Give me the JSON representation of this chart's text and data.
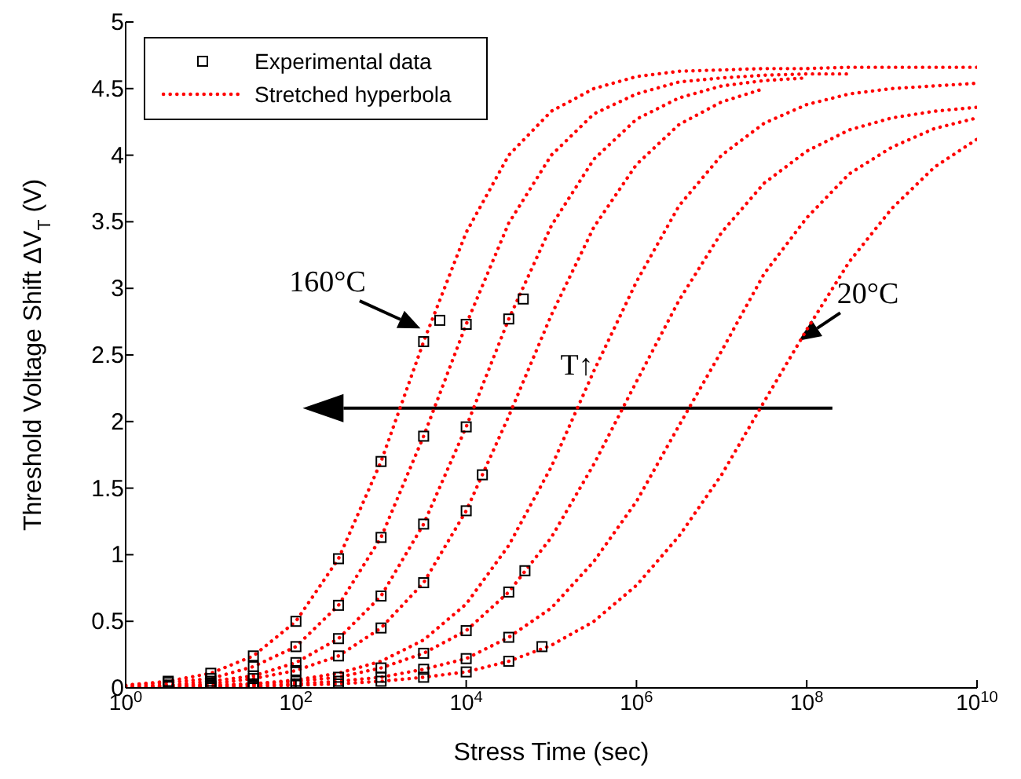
{
  "chart_data": {
    "type": "line",
    "xlabel": "Stress Time (sec)",
    "ylabel": "Threshold Voltage Shift ΔV$_{T}$ (V)",
    "log": "x",
    "xlim": [
      1,
      10000000000
    ],
    "xticks": [
      {
        "value": 1,
        "label": "10$^{0}$"
      },
      {
        "value": 100,
        "label": "10$^{2}$"
      },
      {
        "value": 10000,
        "label": "10$^{4}$"
      },
      {
        "value": 1000000,
        "label": "10$^{6}$"
      },
      {
        "value": 100000000,
        "label": "10$^{8}$"
      },
      {
        "value": 10000000000,
        "label": "10$^{10}$"
      }
    ],
    "ylim": [
      0,
      5
    ],
    "yticks": [
      0,
      0.5,
      1,
      1.5,
      2,
      2.5,
      3,
      3.5,
      4,
      4.5,
      5
    ],
    "legend": "top left",
    "annotations": [
      {
        "text": "160°C",
        "x": 3631,
        "y": 2.67
      },
      {
        "text": "20°C",
        "x": 69183097,
        "y": 2.58
      },
      "T↑"
    ],
    "series": [
      {
        "type": "scatter",
        "name": "Experimental data",
        "color": "#000000",
        "marker": "square",
        "x": [
          3.162,
          10,
          31.62,
          100,
          316.2,
          1000,
          3162,
          4898,
          3.162,
          10,
          31.62,
          100,
          316.2,
          1000,
          3162,
          10000,
          3.162,
          10,
          31.62,
          100,
          316.2,
          1000,
          3162,
          10000,
          31623,
          46774,
          3.162,
          10,
          31.62,
          100,
          316.2,
          1000,
          3162,
          10000,
          15488,
          3.162,
          10,
          31.62,
          100,
          316.2,
          1000,
          3162,
          10000,
          31623,
          48978,
          10,
          31.62,
          100,
          316.2,
          1000,
          3162,
          10000,
          31623,
          10,
          31.62,
          100,
          316.2,
          1000,
          3162,
          10000,
          31623,
          77625
        ],
        "values": [
          0.05,
          0.11,
          0.24,
          0.5,
          0.97,
          1.7,
          2.6,
          2.76,
          0.04,
          0.07,
          0.16,
          0.31,
          0.62,
          1.13,
          1.89,
          2.73,
          0.02,
          0.05,
          0.09,
          0.19,
          0.37,
          0.69,
          1.23,
          1.96,
          2.77,
          2.92,
          0.02,
          0.03,
          0.07,
          0.13,
          0.24,
          0.45,
          0.79,
          1.33,
          1.6,
          0.01,
          0.02,
          0.03,
          0.05,
          0.08,
          0.15,
          0.26,
          0.43,
          0.72,
          0.88,
          0.01,
          0.02,
          0.03,
          0.05,
          0.08,
          0.14,
          0.22,
          0.38,
          0.01,
          0.01,
          0.02,
          0.03,
          0.05,
          0.08,
          0.12,
          0.2,
          0.31
        ]
      },
      {
        "name": "Stretched hyperbola",
        "color": "#ff0000",
        "line_style": "dotted",
        "x": [
          1,
          3.162,
          10,
          31.62,
          100,
          316.2,
          1000,
          3162,
          10000,
          31623,
          100000,
          316228,
          1000000,
          3162278,
          10000000,
          31622777,
          100000000,
          316227766,
          1000000000,
          3162277660,
          10000000000
        ],
        "values": [
          0.02,
          0.05,
          0.11,
          0.24,
          0.5,
          0.97,
          1.7,
          2.6,
          3.42,
          4.0,
          4.33,
          4.5,
          4.59,
          4.63,
          4.64,
          4.65,
          4.65,
          4.66,
          4.66,
          4.66,
          4.66
        ]
      },
      {
        "color": "#ff0000",
        "line_style": "dotted",
        "x": [
          1,
          3.162,
          10,
          31.62,
          100,
          316.2,
          1000,
          3162,
          10000,
          31623,
          100000,
          316228,
          1000000,
          3162278,
          10000000,
          31622777,
          100000000,
          316227766
        ],
        "values": [
          0.02,
          0.04,
          0.07,
          0.16,
          0.31,
          0.62,
          1.13,
          1.89,
          2.73,
          3.49,
          4.0,
          4.31,
          4.46,
          4.55,
          4.58,
          4.6,
          4.61,
          4.61
        ]
      },
      {
        "color": "#ff0000",
        "line_style": "dotted",
        "x": [
          1,
          3.162,
          10,
          31.62,
          100,
          316.2,
          1000,
          3162,
          10000,
          31623,
          100000,
          316228,
          1000000,
          3162278,
          10000000,
          31622777,
          100000000
        ],
        "values": [
          0.01,
          0.02,
          0.05,
          0.09,
          0.19,
          0.37,
          0.69,
          1.23,
          1.96,
          2.77,
          3.47,
          3.97,
          4.27,
          4.43,
          4.52,
          4.56,
          4.58
        ]
      },
      {
        "color": "#ff0000",
        "line_style": "dotted",
        "x": [
          1,
          3.162,
          10,
          31.62,
          100,
          316.2,
          1000,
          3162,
          10000,
          31623,
          100000,
          316228,
          1000000,
          3162278,
          10000000,
          31622777
        ],
        "values": [
          0.01,
          0.02,
          0.03,
          0.07,
          0.13,
          0.24,
          0.45,
          0.79,
          1.33,
          2.04,
          2.8,
          3.46,
          3.93,
          4.23,
          4.4,
          4.5
        ]
      },
      {
        "color": "#ff0000",
        "line_style": "dotted",
        "x": [
          1,
          3.162,
          10,
          31.62,
          100,
          316.2,
          1000,
          3162,
          10000,
          31623,
          100000,
          316228,
          1000000,
          3162278,
          10000000,
          31622777,
          100000000,
          316227766,
          1000000000,
          3162277660,
          10000000000
        ],
        "values": [
          0,
          0.01,
          0.02,
          0.03,
          0.06,
          0.11,
          0.2,
          0.36,
          0.63,
          1.07,
          1.66,
          2.38,
          3.05,
          3.62,
          4.0,
          4.24,
          4.38,
          4.46,
          4.5,
          4.52,
          4.54
        ]
      },
      {
        "color": "#ff0000",
        "line_style": "dotted",
        "x": [
          1,
          3.162,
          10,
          31.62,
          100,
          316.2,
          1000,
          3162,
          10000,
          31623,
          100000,
          316228,
          1000000,
          3162278,
          10000000,
          31622777,
          100000000,
          316227766,
          1000000000,
          3162277660,
          10000000000
        ],
        "values": [
          0,
          0.01,
          0.02,
          0.03,
          0.05,
          0.08,
          0.15,
          0.26,
          0.43,
          0.72,
          1.13,
          1.68,
          2.3,
          2.91,
          3.42,
          3.79,
          4.03,
          4.19,
          4.28,
          4.33,
          4.36
        ]
      },
      {
        "color": "#ff0000",
        "line_style": "dotted",
        "x": [
          1,
          3.162,
          10,
          31.62,
          100,
          316.2,
          1000,
          3162,
          10000,
          31623,
          100000,
          316228,
          1000000,
          3162278,
          10000000,
          31622777,
          100000000,
          316227766,
          1000000000,
          3162277660,
          10000000000
        ],
        "values": [
          0,
          0,
          0.01,
          0.02,
          0.03,
          0.05,
          0.08,
          0.14,
          0.22,
          0.38,
          0.6,
          0.95,
          1.4,
          1.97,
          2.53,
          3.11,
          3.53,
          3.86,
          4.06,
          4.2,
          4.28
        ]
      },
      {
        "color": "#ff0000",
        "line_style": "dotted",
        "x": [
          1,
          3.162,
          10,
          31.62,
          100,
          316.2,
          1000,
          3162,
          10000,
          31623,
          100000,
          316228,
          1000000,
          3162278,
          10000000,
          31622777,
          100000000,
          316227766,
          1000000000,
          3162277660,
          10000000000
        ],
        "values": [
          0,
          0,
          0.01,
          0.01,
          0.02,
          0.03,
          0.05,
          0.08,
          0.12,
          0.2,
          0.32,
          0.5,
          0.77,
          1.14,
          1.6,
          2.15,
          2.69,
          3.2,
          3.6,
          3.91,
          4.12
        ]
      }
    ]
  }
}
